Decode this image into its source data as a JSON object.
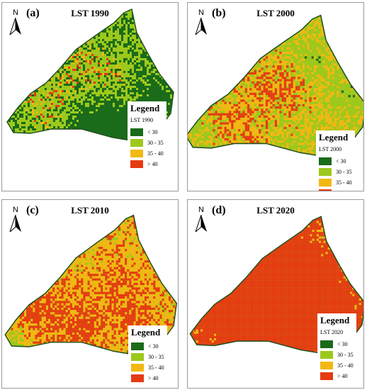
{
  "panels": [
    {
      "label": "(a)",
      "title": "LST 1990",
      "legend_title": "Legend",
      "legend_subtitle": "LST 1990",
      "shading": [
        0.55,
        0.38,
        0.06,
        0.01
      ]
    },
    {
      "label": "(b)",
      "title": "LST 2000",
      "legend_title": "Legend",
      "legend_subtitle": "LST 2000",
      "shading": [
        0.1,
        0.5,
        0.28,
        0.12
      ]
    },
    {
      "label": "(c)",
      "title": "LST 2010",
      "legend_title": "Legend",
      "legend_subtitle": "LST 2010",
      "shading": [
        0.04,
        0.28,
        0.42,
        0.26
      ]
    },
    {
      "label": "(d)",
      "title": "LST 2020",
      "legend_title": "Legend",
      "legend_subtitle": "LST 2020",
      "shading": [
        0.02,
        0.15,
        0.23,
        0.6
      ]
    }
  ],
  "north_label": "N",
  "legend_classes": [
    {
      "label": "< 30",
      "color": "#1a6b1a"
    },
    {
      "label": "30 - 35",
      "color": "#9dc81c"
    },
    {
      "label": "35 - 40",
      "color": "#f2b814"
    },
    {
      "label": "> 40",
      "color": "#e63a12"
    }
  ],
  "outline_color": "#1e4f1e"
}
